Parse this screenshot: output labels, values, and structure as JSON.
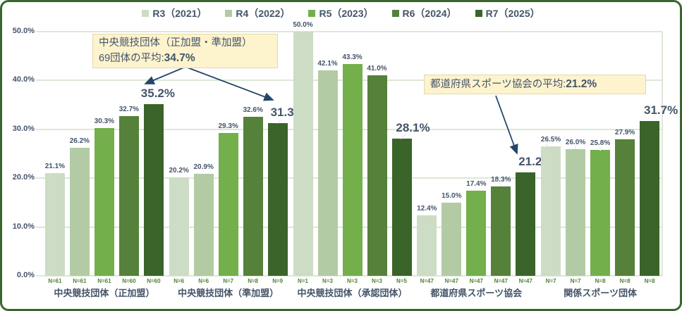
{
  "chart_data": {
    "type": "bar",
    "title": "",
    "xlabel": "",
    "ylabel": "",
    "ylim": [
      0,
      50
    ],
    "grid": true,
    "legend_position": "top",
    "y_ticks": [
      "0.0%",
      "10.0%",
      "20.0%",
      "30.0%",
      "40.0%",
      "50.0%"
    ],
    "value_suffix": "%",
    "categories": [
      "中央競技団体（正加盟）",
      "中央競技団体（準加盟）",
      "中央競技団体（承認団体）",
      "都道府県スポーツ協会",
      "関係スポーツ団体"
    ],
    "series": [
      {
        "name": "R3（2021）",
        "color": "#cdddc5",
        "values": [
          21.1,
          20.2,
          50.0,
          12.4,
          26.5
        ]
      },
      {
        "name": "R4（2022）",
        "color": "#b2cba4",
        "values": [
          26.2,
          20.9,
          42.1,
          15.0,
          26.0
        ]
      },
      {
        "name": "R5（2023）",
        "color": "#73af4b",
        "values": [
          30.3,
          29.3,
          43.3,
          17.4,
          25.8
        ]
      },
      {
        "name": "R6（2024）",
        "color": "#55813a",
        "values": [
          32.7,
          32.6,
          41.0,
          18.3,
          27.9
        ]
      },
      {
        "name": "R7（2025）",
        "color": "#3a6429",
        "values": [
          35.2,
          31.3,
          28.1,
          21.2,
          31.7
        ]
      }
    ],
    "n_labels": [
      [
        "N=61",
        "N=61",
        "N=61",
        "N=60",
        "N=60"
      ],
      [
        "N=6",
        "N=6",
        "N=7",
        "N=8",
        "N=9"
      ],
      [
        "N=1",
        "N=3",
        "N=3",
        "N=3",
        "N=5"
      ],
      [
        "N=47",
        "N=47",
        "N=47",
        "N=47",
        "N=47"
      ],
      [
        "N=7",
        "N=7",
        "N=8",
        "N=8",
        "N=8"
      ]
    ]
  },
  "annotations": {
    "ncf_box": {
      "line1": "中央競技団体（正加盟・準加盟）",
      "line2_prefix": "69団体の平均:",
      "line2_value": "34.7%"
    },
    "pref_box": {
      "prefix": "都道府県スポーツ協会の平均:",
      "value": "21.2%"
    }
  },
  "colors": {
    "text": "#44546a",
    "grid": "#dce8d6",
    "frame": "#39662e",
    "annotation_bg": "#fdf3cd",
    "annotation_border": "#e6d9a8",
    "arrow": "#24466b",
    "n_label": "#538135",
    "leader": "#f2f2f2",
    "background": "#ffffff"
  }
}
